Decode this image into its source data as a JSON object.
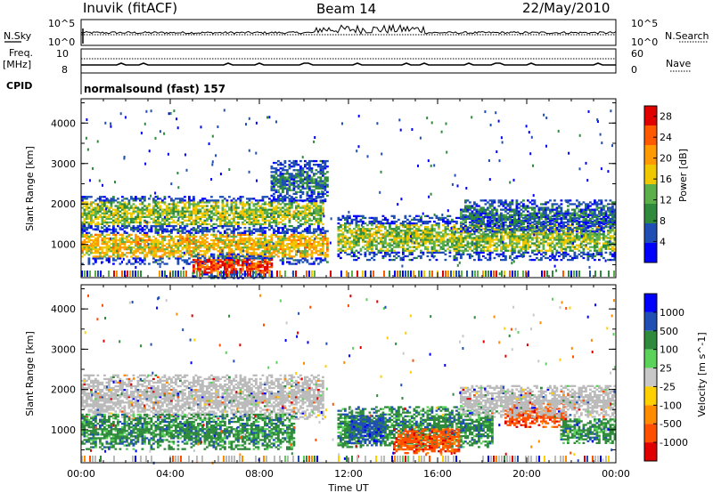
{
  "header": {
    "station": "Inuvik (fitACF)",
    "beam": "Beam 14",
    "date": "22/May/2010"
  },
  "strip_labels": {
    "nsky": "N.Sky",
    "nsearch": "N.Search",
    "freq_line1": "Freq.",
    "freq_line2": "[MHz]",
    "nave": "Nave",
    "cpid": "CPID",
    "cpid_value": "normalsound (fast) 157"
  },
  "colors": {
    "power_scale": [
      "#0000ff",
      "#1f4fb5",
      "#2f8a3c",
      "#5bb04a",
      "#f0c800",
      "#ff9a00",
      "#ff5a00",
      "#e00000"
    ],
    "velocity_scale": [
      "#0000ff",
      "#1f4fb5",
      "#2f8a3c",
      "#5bd35b",
      "#c8c8c8",
      "#ffd000",
      "#ff8c00",
      "#ff5000",
      "#e00000"
    ],
    "ground_scatter": "#bbbbbb"
  },
  "chart_data": [
    {
      "type": "line",
      "name": "N.Sky / N.Search strip",
      "xlabel": "",
      "ylabel_left": "N.Sky",
      "ylabel_right": "N.Search",
      "left_ticks": [
        "10^5",
        "10^0"
      ],
      "right_ticks": [
        "10^5",
        "10^0"
      ],
      "x_hours": [
        0,
        24
      ],
      "dense_interval_hours": [
        10.5,
        15.5
      ]
    },
    {
      "type": "line",
      "name": "Freq / Nave strip",
      "ylabel_left": "Freq. [MHz]",
      "ylabel_right": "Nave",
      "left_ticks": [
        "10",
        "8"
      ],
      "right_ticks": [
        "60",
        "0"
      ],
      "x_hours": [
        0,
        24
      ]
    },
    {
      "type": "heatmap",
      "name": "Power panel",
      "ylabel": "Slant Range [km]",
      "yticks": [
        1000,
        2000,
        3000,
        4000
      ],
      "ylim": [
        180,
        4600
      ],
      "xlim_hours": [
        0,
        24
      ],
      "colorbar_label": "Power [dB]",
      "colorbar_ticks": [
        4,
        8,
        12,
        16,
        20,
        24,
        28
      ],
      "colorbar_range": [
        0,
        30
      ],
      "bands": [
        {
          "t0": 0.0,
          "t1": 10.8,
          "r_center": 1750,
          "r_width": 450,
          "level": 14
        },
        {
          "t0": 0.0,
          "t1": 11.0,
          "r_center": 950,
          "r_width": 450,
          "level": 18
        },
        {
          "t0": 11.5,
          "t1": 24.0,
          "r_center": 1150,
          "r_width": 550,
          "level": 14
        },
        {
          "t0": 17.0,
          "t1": 24.0,
          "r_center": 1700,
          "r_width": 400,
          "level": 7
        },
        {
          "t0": 8.5,
          "t1": 11.0,
          "r_center": 2550,
          "r_width": 500,
          "level": 8
        },
        {
          "t0": 5.0,
          "t1": 8.5,
          "r_center": 450,
          "r_width": 300,
          "level": 26
        }
      ]
    },
    {
      "type": "heatmap",
      "name": "Velocity panel",
      "ylabel": "Slant Range [km]",
      "yticks": [
        1000,
        2000,
        3000,
        4000
      ],
      "ylim": [
        180,
        4600
      ],
      "xlim_hours": [
        0,
        24
      ],
      "xticks": [
        "00:00",
        "04:00",
        "08:00",
        "12:00",
        "16:00",
        "20:00",
        "00:00"
      ],
      "xtick_hours": [
        0,
        4,
        8,
        12,
        16,
        20,
        24
      ],
      "xlabel": "Time UT",
      "colorbar_label": "Velocity [m s^-1]",
      "colorbar_ticks": [
        "1000",
        "500",
        "100",
        "25",
        "-25",
        "-100",
        "-500",
        "-1000"
      ],
      "bands": [
        {
          "t0": 0.0,
          "t1": 10.8,
          "r_center": 1800,
          "r_width": 550,
          "class": "ground"
        },
        {
          "t0": 0.0,
          "t1": 9.5,
          "r_center": 950,
          "r_width": 450,
          "class": 100
        },
        {
          "t0": 11.5,
          "t1": 18.5,
          "r_center": 1050,
          "r_width": 500,
          "class": 100
        },
        {
          "t0": 12.0,
          "t1": 13.5,
          "r_center": 1000,
          "r_width": 350,
          "class": 500
        },
        {
          "t0": 14.0,
          "t1": 17.0,
          "r_center": 700,
          "r_width": 300,
          "class": -500
        },
        {
          "t0": 19.0,
          "t1": 21.8,
          "r_center": 1350,
          "r_width": 300,
          "class": -500
        },
        {
          "t0": 17.0,
          "t1": 24.0,
          "r_center": 1700,
          "r_width": 400,
          "class": "ground"
        },
        {
          "t0": 21.5,
          "t1": 24.0,
          "r_center": 950,
          "r_width": 300,
          "class": 100
        }
      ]
    }
  ]
}
